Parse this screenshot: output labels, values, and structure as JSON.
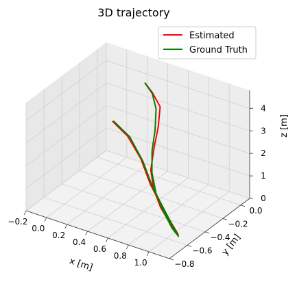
{
  "chart_data": {
    "type": "line",
    "projection": "3d",
    "title": "3D trajectory",
    "xlabel": "x [m]",
    "ylabel": "y [m]",
    "zlabel": "z [m]",
    "xlim": [
      -0.2,
      1.2
    ],
    "ylim": [
      -0.8,
      0.1
    ],
    "zlim": [
      0,
      4.8
    ],
    "xticks": [
      "−0.2",
      "0.0",
      "0.2",
      "0.4",
      "0.6",
      "0.8",
      "1.0"
    ],
    "yticks": [
      "−0.8",
      "−0.6",
      "−0.4",
      "−0.2",
      "0.0"
    ],
    "zticks": [
      "0",
      "1",
      "2",
      "3",
      "4"
    ],
    "grid": true,
    "legend_position": "top-right",
    "colors": {
      "estimated": "#ff0000",
      "ground_truth": "#008000"
    },
    "series": [
      {
        "name": "Estimated",
        "points": [
          [
            0.28,
            -0.02,
            4.1
          ],
          [
            0.38,
            -0.05,
            3.9
          ],
          [
            0.5,
            -0.1,
            3.6
          ],
          [
            0.55,
            -0.18,
            3.0
          ],
          [
            0.57,
            -0.25,
            2.3
          ],
          [
            0.6,
            -0.32,
            1.6
          ],
          [
            0.68,
            -0.38,
            1.05
          ],
          [
            0.8,
            -0.44,
            0.6
          ],
          [
            0.95,
            -0.5,
            0.25
          ],
          [
            1.05,
            -0.53,
            0.05
          ],
          [
            0.85,
            -0.46,
            0.6
          ],
          [
            0.65,
            -0.38,
            1.2
          ],
          [
            0.45,
            -0.26,
            1.7
          ],
          [
            0.2,
            -0.12,
            1.9
          ],
          [
            0.0,
            -0.02,
            1.8
          ],
          [
            -0.08,
            0.03,
            1.7
          ]
        ]
      },
      {
        "name": "Ground Truth",
        "points": [
          [
            0.28,
            -0.02,
            4.1
          ],
          [
            0.38,
            -0.05,
            3.85
          ],
          [
            0.46,
            -0.1,
            3.45
          ],
          [
            0.52,
            -0.18,
            2.85
          ],
          [
            0.56,
            -0.26,
            2.2
          ],
          [
            0.62,
            -0.33,
            1.55
          ],
          [
            0.72,
            -0.4,
            1.0
          ],
          [
            0.86,
            -0.47,
            0.55
          ],
          [
            0.98,
            -0.52,
            0.2
          ],
          [
            1.07,
            -0.55,
            0.05
          ],
          [
            0.88,
            -0.47,
            0.55
          ],
          [
            0.68,
            -0.39,
            1.15
          ],
          [
            0.48,
            -0.27,
            1.65
          ],
          [
            0.22,
            -0.12,
            1.9
          ],
          [
            0.02,
            -0.02,
            1.8
          ],
          [
            -0.07,
            0.03,
            1.72
          ]
        ]
      }
    ]
  }
}
